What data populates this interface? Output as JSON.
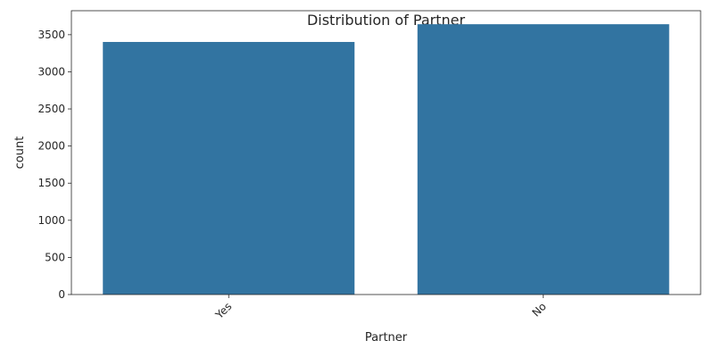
{
  "chart_data": {
    "type": "bar",
    "title": "Distribution of Partner",
    "xlabel": "Partner",
    "ylabel": "count",
    "categories": [
      "Yes",
      "No"
    ],
    "values": [
      3402,
      3641
    ],
    "ylim": [
      0,
      3823
    ],
    "yticks": [
      0,
      500,
      1000,
      1500,
      2000,
      2500,
      3000,
      3500
    ],
    "xtick_rotation_deg": 45,
    "grid": false,
    "legend": "none",
    "bar_color": "#3274a1"
  }
}
